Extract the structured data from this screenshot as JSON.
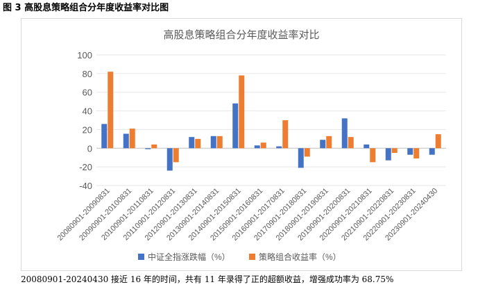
{
  "figure_title": "图 3 高股息策略组合分年度收益率对比图",
  "caption": "20080901-20240430 接近 16 年的时间，共有 11 年录得了正的超额收益，增强成功率为 68.75%",
  "chart_data": {
    "type": "bar",
    "title": "高股息策略组合分年度收益率对比",
    "categories": [
      "20080901-20090831",
      "20090901-20100831",
      "20100901-20110831",
      "20110901-20120831",
      "20120901-20130831",
      "20130901-20140831",
      "20140901-20150831",
      "20150901-20160831",
      "20160901-20170831",
      "20170901-20180831",
      "20180901-20190831",
      "20190901-20200831",
      "20200901-20210831",
      "20210901-20220831",
      "20220901-20230831",
      "20230901-20240430"
    ],
    "series": [
      {
        "name": "中证全指涨跌幅（%）",
        "color": "#4472c4",
        "values": [
          26,
          15.5,
          -1,
          -24,
          12,
          13,
          48,
          3,
          2,
          -21,
          9,
          32,
          4,
          -13,
          -7,
          -7
        ]
      },
      {
        "name": "策略组合收益率（%）",
        "color": "#ed7d31",
        "values": [
          82,
          21,
          4,
          -15,
          10,
          13,
          78,
          6,
          30,
          -9,
          13,
          12,
          -15,
          -5,
          -11,
          15
        ]
      }
    ],
    "ylim": [
      -40,
      100
    ],
    "yticks": [
      -40,
      -20,
      0,
      20,
      40,
      60,
      80,
      100
    ],
    "grid": true,
    "legend": "bottom"
  }
}
